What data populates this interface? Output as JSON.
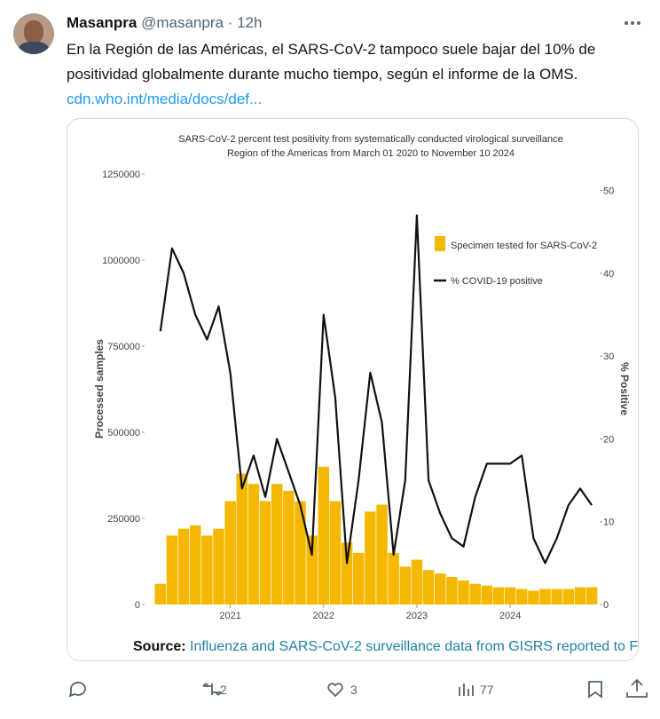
{
  "tweet": {
    "name": "Masanpra",
    "handle": "@masanpra",
    "time": "· 12h",
    "text_lines": [
      "En la Región de las Américas, el SARS-CoV-2 tampoco suele bajar del 10% de",
      "positividad globalmente durante mucho tiempo, según el informe de la OMS."
    ],
    "link": "cdn.who.int/media/docs/def...",
    "source_label": "Source:",
    "source_text": "Influenza and SARS-CoV-2 surveillance data from GISRS reported to F",
    "retweets": "2",
    "likes": "3",
    "views": "77"
  },
  "chart_data": {
    "type": "bar_line",
    "title": [
      "SARS-CoV-2 percent test positivity from systematically conducted virological surveillance",
      "Region of the Americas from March 01 2020 to November 10 2024"
    ],
    "y_label": "Processed samples",
    "y2_label": "% Positive",
    "x": [
      2020.25,
      2020.375,
      2020.5,
      2020.625,
      2020.75,
      2020.875,
      2021.0,
      2021.125,
      2021.25,
      2021.375,
      2021.5,
      2021.625,
      2021.75,
      2021.875,
      2022.0,
      2022.125,
      2022.25,
      2022.375,
      2022.5,
      2022.625,
      2022.75,
      2022.875,
      2023.0,
      2023.125,
      2023.25,
      2023.375,
      2023.5,
      2023.625,
      2023.75,
      2023.875,
      2024.0,
      2024.125,
      2024.25,
      2024.375,
      2024.5,
      2024.625,
      2024.75,
      2024.875
    ],
    "series": [
      {
        "name": "Specimen tested for SARS-CoV-2",
        "color": "#f5b800",
        "values": [
          60000,
          200000,
          220000,
          230000,
          200000,
          220000,
          300000,
          380000,
          350000,
          300000,
          350000,
          330000,
          300000,
          200000,
          400000,
          300000,
          180000,
          150000,
          270000,
          290000,
          150000,
          110000,
          130000,
          100000,
          90000,
          80000,
          70000,
          60000,
          55000,
          50000,
          50000,
          45000,
          40000,
          45000,
          45000,
          45000,
          50000,
          50000
        ]
      },
      {
        "name": "% COVID-19 positive",
        "color": "#111111",
        "axis": "y2",
        "values": [
          33,
          43,
          40,
          35,
          32,
          36,
          28,
          14,
          18,
          13,
          20,
          16,
          12,
          6,
          35,
          25,
          5,
          15,
          28,
          22,
          6,
          15,
          47,
          15,
          11,
          8,
          7,
          13,
          17,
          17,
          17,
          18,
          8,
          5,
          8,
          12,
          14,
          12
        ]
      }
    ],
    "xlim": [
      2020.1,
      2024.95
    ],
    "xticks": [
      2021,
      2022,
      2023,
      2024
    ],
    "ylim": [
      0,
      1250000
    ],
    "yticks": [
      0,
      250000,
      500000,
      750000,
      1000000,
      1250000
    ],
    "y2lim": [
      0,
      52
    ],
    "y2ticks": [
      0,
      10,
      20,
      30,
      40,
      50
    ]
  }
}
